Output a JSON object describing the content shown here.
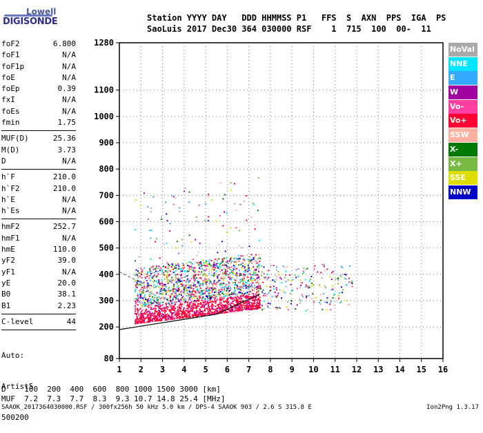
{
  "logo": {
    "line1": "Lowell",
    "line2": "DIGISONDE"
  },
  "header": {
    "line1": "Station YYYY DAY   DDD HHMMSS P1   FFS  S  AXN  PPS  IGA  PS",
    "line2": "SaoLuis 2017 Dec30 364 030000 RSF    1  715  100  00-  11"
  },
  "params": [
    {
      "k": "foF2",
      "v": "6.800"
    },
    {
      "k": "foF1",
      "v": "N/A"
    },
    {
      "k": "foF1p",
      "v": "N/A"
    },
    {
      "k": "foE",
      "v": "N/A"
    },
    {
      "k": "foEp",
      "v": "0.39"
    },
    {
      "k": "fxI",
      "v": "N/A"
    },
    {
      "k": "foEs",
      "v": "N/A"
    },
    {
      "k": "fmin",
      "v": "1.75"
    },
    {
      "k": "MUF(D)",
      "v": "25.36",
      "sep": true
    },
    {
      "k": "M(D)",
      "v": "3.73"
    },
    {
      "k": "D",
      "v": "N/A"
    },
    {
      "k": "h`F",
      "v": "210.0",
      "sep": true
    },
    {
      "k": "h`F2",
      "v": "210.0"
    },
    {
      "k": "h`E",
      "v": "N/A"
    },
    {
      "k": "h`Es",
      "v": "N/A"
    },
    {
      "k": "hmF2",
      "v": "252.7",
      "sep": true
    },
    {
      "k": "hmF1",
      "v": "N/A"
    },
    {
      "k": "hmE",
      "v": "110.0"
    },
    {
      "k": "yF2",
      "v": "39.0"
    },
    {
      "k": "yF1",
      "v": "N/A"
    },
    {
      "k": "yE",
      "v": "20.0"
    },
    {
      "k": "B0",
      "v": "38.1"
    },
    {
      "k": "B1",
      "v": "2.23"
    },
    {
      "k": "C-level",
      "v": "44",
      "sep": true
    }
  ],
  "auto": {
    "line1": "Auto:",
    "line2": "Artist5",
    "line3": "500200"
  },
  "legend": [
    {
      "label": "NoVal",
      "color": "#a9a9a9"
    },
    {
      "label": "NNE",
      "color": "#00e5ff"
    },
    {
      "label": "E",
      "color": "#33aaff"
    },
    {
      "label": "W",
      "color": "#a000a0"
    },
    {
      "label": "Vo-",
      "color": "#ff3fa0"
    },
    {
      "label": "Vo+",
      "color": "#ff0033"
    },
    {
      "label": "SSW",
      "color": "#ffb0a0"
    },
    {
      "label": "X-",
      "color": "#007a00"
    },
    {
      "label": "X+",
      "color": "#77bb44"
    },
    {
      "label": "SSE",
      "color": "#dddd00"
    },
    {
      "label": "NNW",
      "color": "#0000c8"
    }
  ],
  "chart_data": {
    "type": "scatter",
    "title": "",
    "xlabel": "",
    "ylabel": "",
    "xlim": [
      1,
      16
    ],
    "ylim": [
      80,
      1280
    ],
    "x_ticks": [
      1,
      2,
      3,
      4,
      5,
      6,
      7,
      8,
      9,
      10,
      11,
      12,
      13,
      14,
      15,
      16
    ],
    "y_ticks": [
      80,
      200,
      300,
      400,
      500,
      600,
      700,
      800,
      900,
      1000,
      1100,
      1280
    ],
    "echo_band": {
      "f_start": 1.7,
      "f_end": 7.5,
      "h_low": 210,
      "h_high": 420
    }
  },
  "footer": {
    "d_line": "D    100  200  400  600  800 1000 1500 3000 [km]",
    "muf_line": "MUF  7.2  7.3  7.7  8.3  9.3 10.7 14.8 25.4 [MHz]",
    "file_line": "SAAOK_2017364030000.RSF / 300fx256h 50 kHz 5.0 km / DPS-4 SAAOK 903 / 2.6 S 315.8 E",
    "version": "Ion2Png 1.3.17"
  }
}
